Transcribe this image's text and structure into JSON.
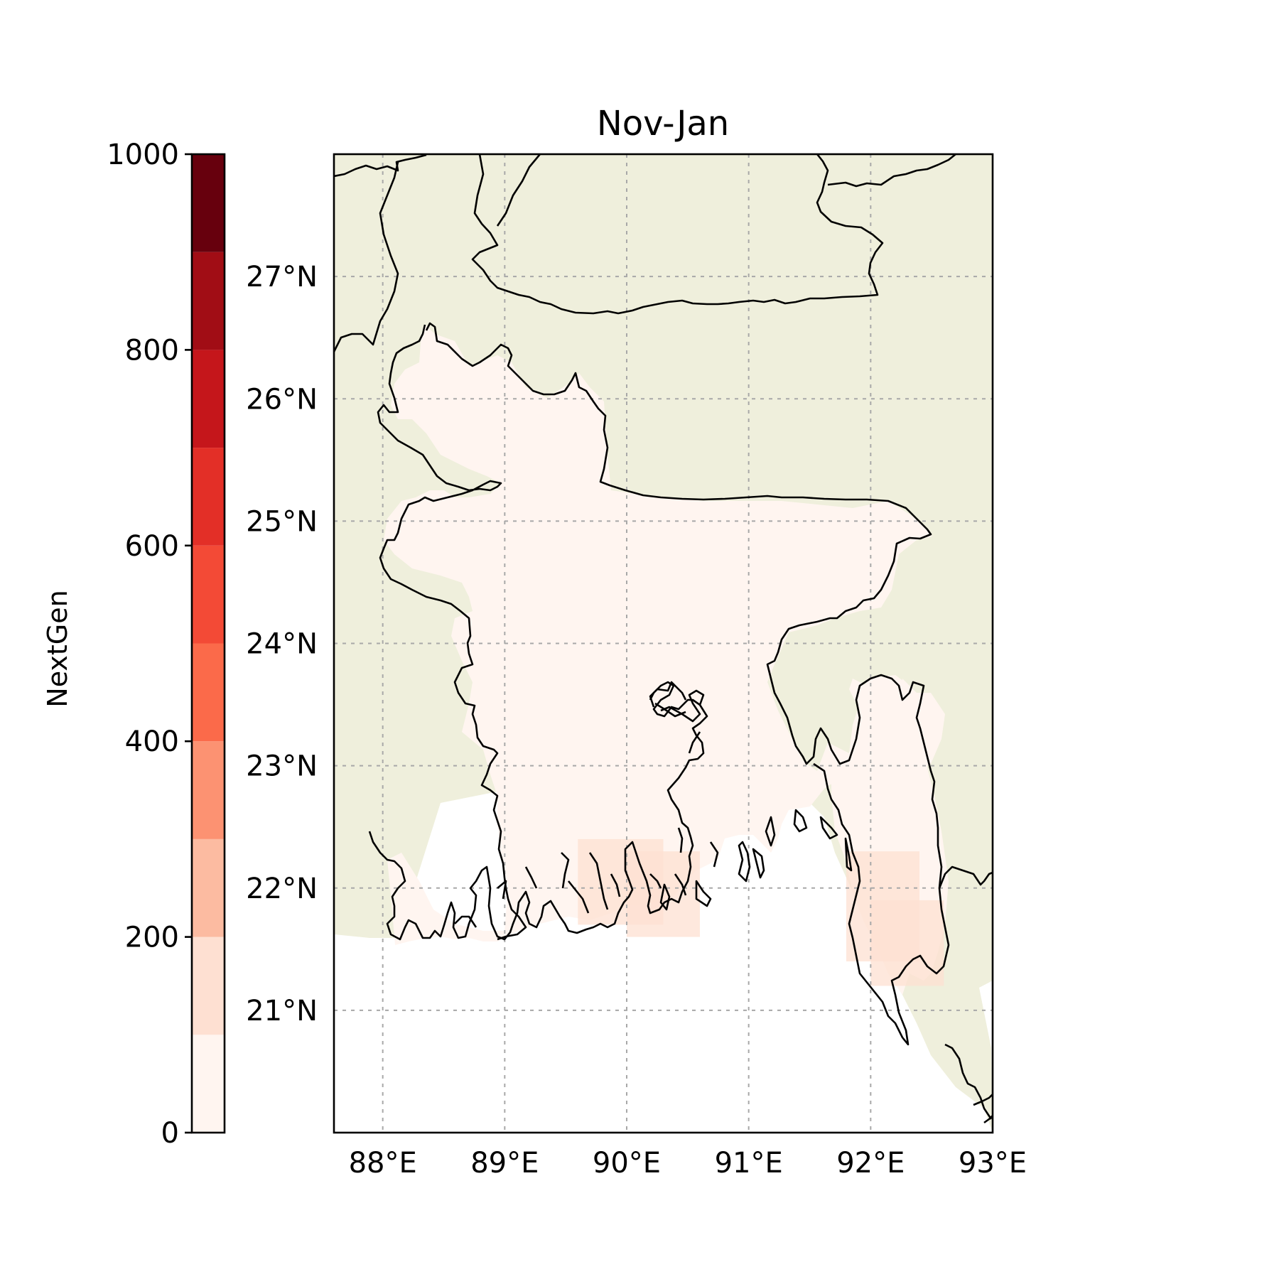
{
  "title": "Nov-Jan",
  "colorbar": {
    "label": "NextGen",
    "ticks": [
      0,
      200,
      400,
      600,
      800,
      1000
    ],
    "tick_labels": [
      "0",
      "200",
      "400",
      "600",
      "800",
      "1000"
    ],
    "levels": [
      0,
      100,
      200,
      300,
      400,
      500,
      600,
      700,
      800,
      900,
      1000
    ],
    "colors": [
      "#fff5f0",
      "#fee0d2",
      "#fcbba1",
      "#fc9272",
      "#fb6a4a",
      "#f34a36",
      "#e32f27",
      "#c5161b",
      "#a10d15",
      "#67000d"
    ]
  },
  "map": {
    "lon_range": [
      87.6,
      93.0
    ],
    "lat_range": [
      20.0,
      28.0
    ],
    "lon_ticks": [
      88,
      89,
      90,
      91,
      92,
      93
    ],
    "lon_tick_labels": [
      "88°E",
      "89°E",
      "90°E",
      "91°E",
      "92°E",
      "93°E"
    ],
    "lat_ticks": [
      21,
      22,
      23,
      24,
      25,
      26,
      27
    ],
    "lat_tick_labels": [
      "21°N",
      "22°N",
      "23°N",
      "24°N",
      "25°N",
      "26°N",
      "27°N"
    ],
    "gridlines": true,
    "land_color": "#efefdc",
    "ocean_color": "#ffffff",
    "field_base_color": "#fff5f0",
    "highlight_patches": [
      {
        "lon": [
          89.6,
          90.3
        ],
        "lat": [
          21.7,
          22.4
        ],
        "value": 120
      },
      {
        "lon": [
          90.0,
          90.6
        ],
        "lat": [
          21.6,
          22.3
        ],
        "value": 110
      },
      {
        "lon": [
          91.8,
          92.4
        ],
        "lat": [
          21.4,
          22.3
        ],
        "value": 130
      },
      {
        "lon": [
          92.0,
          92.6
        ],
        "lat": [
          21.2,
          21.9
        ],
        "value": 115
      }
    ]
  }
}
